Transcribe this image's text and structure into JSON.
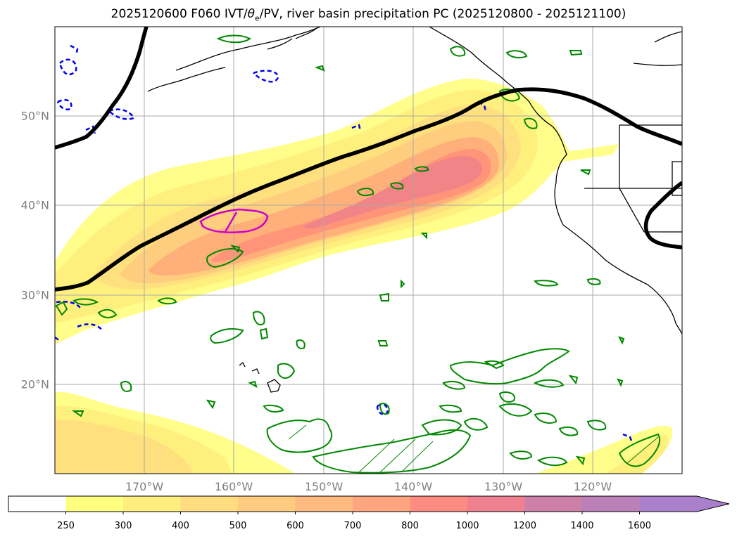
{
  "title_main": "2025120600 F060 IVT/",
  "title_theta": "θ",
  "title_sub": "e",
  "title_rest": "/PV, river basin precipitation PC (2025120800 - 2025121100)",
  "lon_labels": [
    "170°W",
    "160°W",
    "150°W",
    "140°W",
    "130°W",
    "120°W"
  ],
  "lat_labels": [
    "50°N",
    "40°N",
    "30°N",
    "20°N"
  ],
  "colorbar": {
    "levels": [
      "250",
      "300",
      "400",
      "500",
      "600",
      "700",
      "800",
      "1000",
      "1200",
      "1400",
      "1600"
    ],
    "colors": [
      "#ffffff",
      "#ffff80",
      "#ffee80",
      "#ffdd80",
      "#ffcc80",
      "#ffbb80",
      "#ffa680",
      "#ff8c80",
      "#ee8090",
      "#cc80a8",
      "#bb80b8",
      "#aa80cc"
    ]
  },
  "fill_colors": [
    "#fffe8a",
    "#fff07e",
    "#ffe07e",
    "#ffcd7e",
    "#ffb07a",
    "#ff9478",
    "#f18486"
  ],
  "line_colors": {
    "coast": "#000000",
    "pv": "#000000",
    "theta_e": "#cc00cc",
    "green": "#008800",
    "blue": "#0000ee"
  }
}
